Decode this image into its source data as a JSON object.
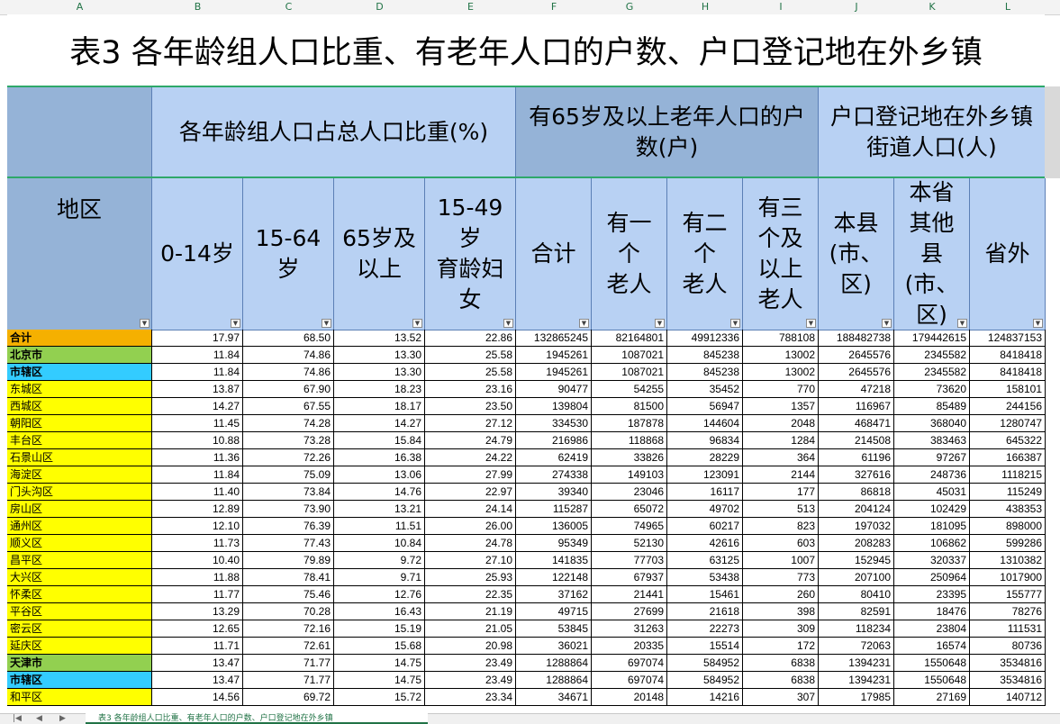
{
  "column_letters": [
    "A",
    "B",
    "C",
    "D",
    "E",
    "F",
    "G",
    "H",
    "I",
    "J",
    "K",
    "L"
  ],
  "title": "表3 各年龄组人口比重、有老年人口的户数、户口登记地在外乡镇",
  "group_headers": {
    "age_ratio": "各年龄组人口占总人口比重(%)",
    "elderly_households": "有65岁及以上老年人口的户\n数(户)",
    "hukou_outside": "户口登记地在外乡镇\n街道人口(人)"
  },
  "sub_headers": {
    "region": "地区",
    "age_0_14": "0-14岁",
    "age_15_64": "15-64\n岁",
    "age_65_plus": "65岁及\n以上",
    "women_15_49": "15-49\n岁\n育龄妇\n女",
    "total": "合计",
    "one_elder": "有一\n个\n老人",
    "two_elders": "有二\n个\n老人",
    "three_elders": "有三\n个及\n以上\n老人",
    "this_county": "本县\n(市、\n区)",
    "other_county": "本省\n其他\n县\n(市、\n区)",
    "outside_province": "省外"
  },
  "rows": [
    {
      "name": "合计",
      "style": "orange",
      "v": [
        "17.97",
        "68.50",
        "13.52",
        "22.86",
        "132865245",
        "82164801",
        "49912336",
        "788108",
        "188482738",
        "179442615",
        "124837153"
      ]
    },
    {
      "name": "北京市",
      "style": "green",
      "v": [
        "11.84",
        "74.86",
        "13.30",
        "25.58",
        "1945261",
        "1087021",
        "845238",
        "13002",
        "2645576",
        "2345582",
        "8418418"
      ]
    },
    {
      "name": "市辖区",
      "style": "cyan",
      "v": [
        "11.84",
        "74.86",
        "13.30",
        "25.58",
        "1945261",
        "1087021",
        "845238",
        "13002",
        "2645576",
        "2345582",
        "8418418"
      ]
    },
    {
      "name": "东城区",
      "style": "yellow",
      "v": [
        "13.87",
        "67.90",
        "18.23",
        "23.16",
        "90477",
        "54255",
        "35452",
        "770",
        "47218",
        "73620",
        "158101"
      ]
    },
    {
      "name": "西城区",
      "style": "yellow",
      "v": [
        "14.27",
        "67.55",
        "18.17",
        "23.50",
        "139804",
        "81500",
        "56947",
        "1357",
        "116967",
        "85489",
        "244156"
      ]
    },
    {
      "name": "朝阳区",
      "style": "yellow",
      "v": [
        "11.45",
        "74.28",
        "14.27",
        "27.12",
        "334530",
        "187878",
        "144604",
        "2048",
        "468471",
        "368040",
        "1280747"
      ]
    },
    {
      "name": "丰台区",
      "style": "yellow",
      "v": [
        "10.88",
        "73.28",
        "15.84",
        "24.79",
        "216986",
        "118868",
        "96834",
        "1284",
        "214508",
        "383463",
        "645322"
      ]
    },
    {
      "name": "石景山区",
      "style": "yellow",
      "v": [
        "11.36",
        "72.26",
        "16.38",
        "24.22",
        "62419",
        "33826",
        "28229",
        "364",
        "61196",
        "97267",
        "166387"
      ]
    },
    {
      "name": "海淀区",
      "style": "yellow",
      "v": [
        "11.84",
        "75.09",
        "13.06",
        "27.99",
        "274338",
        "149103",
        "123091",
        "2144",
        "327616",
        "248736",
        "1118215"
      ]
    },
    {
      "name": "门头沟区",
      "style": "yellow",
      "v": [
        "11.40",
        "73.84",
        "14.76",
        "22.97",
        "39340",
        "23046",
        "16117",
        "177",
        "86818",
        "45031",
        "115249"
      ]
    },
    {
      "name": "房山区",
      "style": "yellow",
      "v": [
        "12.89",
        "73.90",
        "13.21",
        "24.14",
        "115287",
        "65072",
        "49702",
        "513",
        "204124",
        "102429",
        "438353"
      ]
    },
    {
      "name": "通州区",
      "style": "yellow",
      "v": [
        "12.10",
        "76.39",
        "11.51",
        "26.00",
        "136005",
        "74965",
        "60217",
        "823",
        "197032",
        "181095",
        "898000"
      ]
    },
    {
      "name": "顺义区",
      "style": "yellow",
      "v": [
        "11.73",
        "77.43",
        "10.84",
        "24.78",
        "95349",
        "52130",
        "42616",
        "603",
        "208283",
        "106862",
        "599286"
      ]
    },
    {
      "name": "昌平区",
      "style": "yellow",
      "v": [
        "10.40",
        "79.89",
        "9.72",
        "27.10",
        "141835",
        "77703",
        "63125",
        "1007",
        "152945",
        "320337",
        "1310382"
      ]
    },
    {
      "name": "大兴区",
      "style": "yellow",
      "v": [
        "11.88",
        "78.41",
        "9.71",
        "25.93",
        "122148",
        "67937",
        "53438",
        "773",
        "207100",
        "250964",
        "1017900"
      ]
    },
    {
      "name": "怀柔区",
      "style": "yellow",
      "v": [
        "11.77",
        "75.46",
        "12.76",
        "22.35",
        "37162",
        "21441",
        "15461",
        "260",
        "80410",
        "23395",
        "155777"
      ]
    },
    {
      "name": "平谷区",
      "style": "yellow",
      "v": [
        "13.29",
        "70.28",
        "16.43",
        "21.19",
        "49715",
        "27699",
        "21618",
        "398",
        "82591",
        "18476",
        "78276"
      ]
    },
    {
      "name": "密云区",
      "style": "yellow",
      "v": [
        "12.65",
        "72.16",
        "15.19",
        "21.05",
        "53845",
        "31263",
        "22273",
        "309",
        "118234",
        "23804",
        "111531"
      ]
    },
    {
      "name": "延庆区",
      "style": "yellow",
      "v": [
        "11.71",
        "72.61",
        "15.68",
        "20.98",
        "36021",
        "20335",
        "15514",
        "172",
        "72063",
        "16574",
        "80736"
      ]
    },
    {
      "name": "天津市",
      "style": "green",
      "v": [
        "13.47",
        "71.77",
        "14.75",
        "23.49",
        "1288864",
        "697074",
        "584952",
        "6838",
        "1394231",
        "1550648",
        "3534816"
      ]
    },
    {
      "name": "市辖区",
      "style": "cyan",
      "v": [
        "13.47",
        "71.77",
        "14.75",
        "23.49",
        "1288864",
        "697074",
        "584952",
        "6838",
        "1394231",
        "1550648",
        "3534816"
      ]
    },
    {
      "name": "和平区",
      "style": "yellow",
      "v": [
        "14.56",
        "69.72",
        "15.72",
        "23.34",
        "34671",
        "20148",
        "14216",
        "307",
        "17985",
        "27169",
        "140712"
      ]
    }
  ],
  "sheet_tab": "表3 各年龄组人口比重、有老年人口的户数、户口登记地在外乡镇",
  "colors": {
    "header_dark": "#95b3d7",
    "header_light": "#b8d1f3",
    "orange": "#f5b000",
    "green": "#92d050",
    "cyan": "#33ccff",
    "yellow": "#ffff00",
    "accent": "#217346"
  }
}
